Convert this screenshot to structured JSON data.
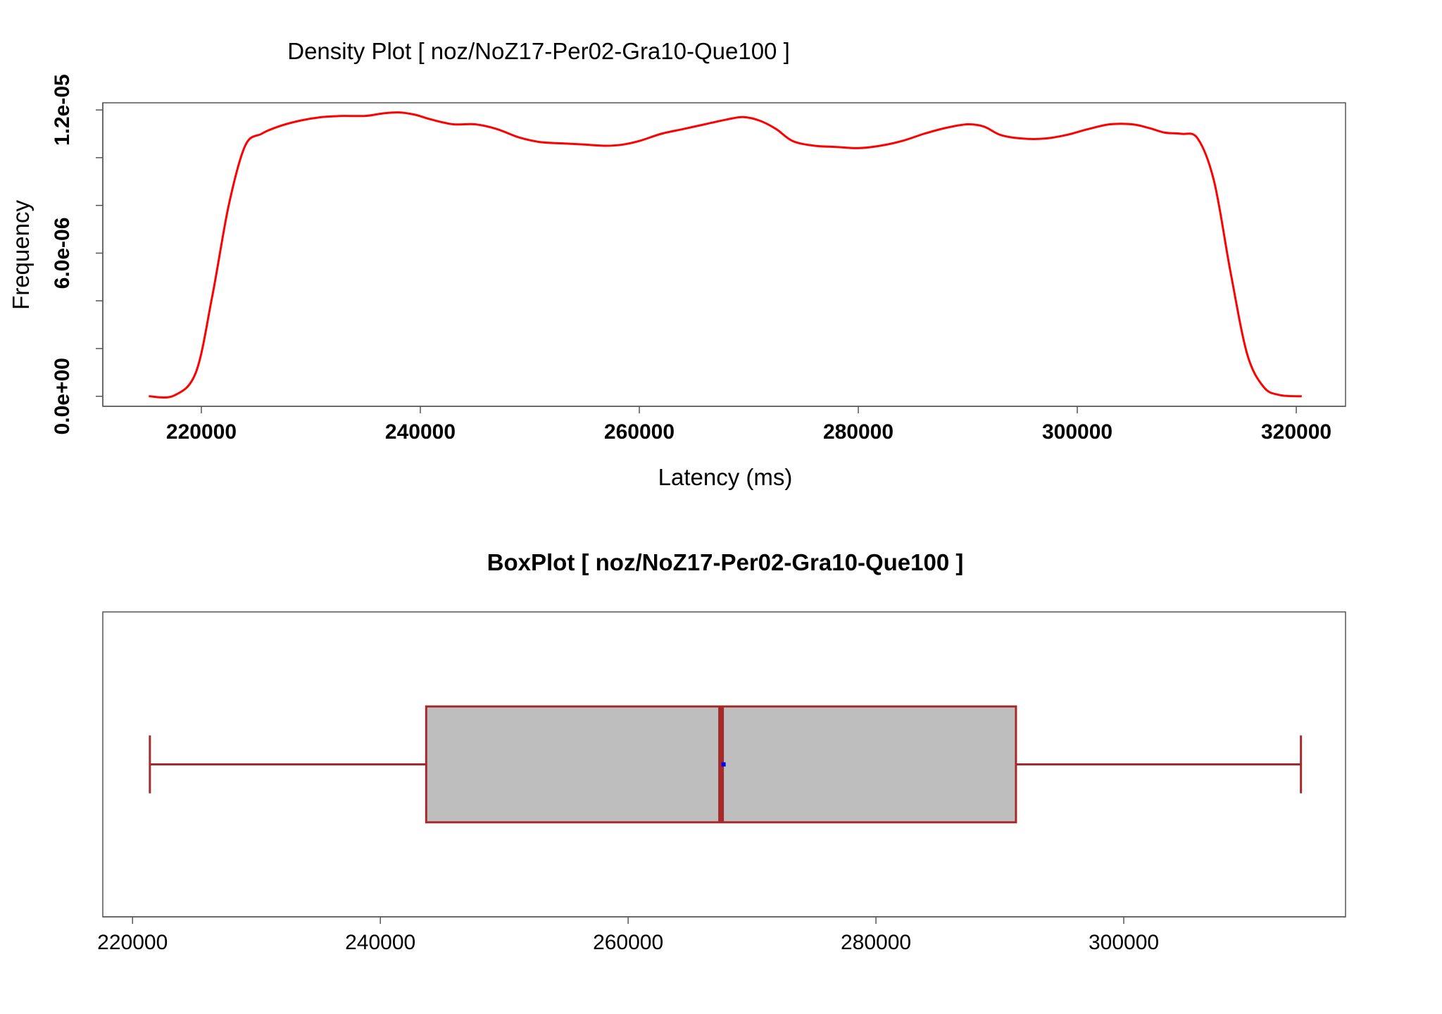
{
  "chart_data": [
    {
      "type": "line",
      "title": "Density Plot [ noz/NoZ17-Per02-Gra10-Que100 ]",
      "xlabel": "Latency (ms)",
      "ylabel": "Frequency",
      "xlim": [
        211000,
        324500
      ],
      "ylim": [
        -4.2e-07,
        1.23e-05
      ],
      "x_ticks": [
        "220000",
        "240000",
        "260000",
        "280000",
        "300000",
        "320000"
      ],
      "x_tick_values": [
        220000,
        240000,
        260000,
        280000,
        300000,
        320000
      ],
      "y_ticks": [
        "0.0e+00",
        "6.0e-06",
        "1.2e-05"
      ],
      "y_tick_values": [
        0,
        6e-06,
        1.2e-05
      ],
      "y_minor_tick_values": [
        0,
        2e-06,
        4e-06,
        6e-06,
        8e-06,
        1e-05,
        1.2e-05
      ],
      "grid": false,
      "series": [
        {
          "color": "#ff0000",
          "x": [
            215200,
            217500,
            219500,
            221000,
            222500,
            224000,
            225500,
            227000,
            229000,
            231000,
            233000,
            235000,
            236500,
            238000,
            239500,
            241000,
            243000,
            245000,
            247000,
            249000,
            251000,
            253000,
            255000,
            257000,
            258500,
            260000,
            262000,
            264000,
            266000,
            268000,
            269500,
            271000,
            272500,
            274000,
            276000,
            278000,
            280000,
            282000,
            284000,
            286000,
            288000,
            290000,
            291500,
            293000,
            295000,
            297000,
            299000,
            301000,
            303000,
            305000,
            306500,
            308000,
            309500,
            311000,
            312500,
            314000,
            315500,
            317000,
            318500,
            320500
          ],
          "y": [
            0.0,
            3e-08,
            1e-06,
            4.2e-06,
            8e-06,
            1.05e-05,
            1.1e-05,
            1.13e-05,
            1.155e-05,
            1.17e-05,
            1.175e-05,
            1.175e-05,
            1.185e-05,
            1.19e-05,
            1.18e-05,
            1.16e-05,
            1.14e-05,
            1.14e-05,
            1.12e-05,
            1.085e-05,
            1.065e-05,
            1.06e-05,
            1.055e-05,
            1.05e-05,
            1.055e-05,
            1.07e-05,
            1.1e-05,
            1.12e-05,
            1.14e-05,
            1.16e-05,
            1.17e-05,
            1.155e-05,
            1.12e-05,
            1.07e-05,
            1.05e-05,
            1.045e-05,
            1.04e-05,
            1.05e-05,
            1.07e-05,
            1.1e-05,
            1.125e-05,
            1.14e-05,
            1.13e-05,
            1.095e-05,
            1.08e-05,
            1.08e-05,
            1.095e-05,
            1.12e-05,
            1.14e-05,
            1.14e-05,
            1.125e-05,
            1.105e-05,
            1.1e-05,
            1.08e-05,
            9e-06,
            5.2e-06,
            1.8e-06,
            4e-07,
            5e-08,
            0.0
          ]
        }
      ]
    },
    {
      "type": "box",
      "title": "BoxPlot [ noz/NoZ17-Per02-Gra10-Que100 ]",
      "xlim": [
        217600,
        317900
      ],
      "x_ticks": [
        "220000",
        "240000",
        "260000",
        "280000",
        "300000"
      ],
      "x_tick_values": [
        220000,
        240000,
        260000,
        280000,
        300000
      ],
      "grid": false,
      "box": {
        "whisker_low": 221400,
        "q1": 243700,
        "median": 267500,
        "mean": 267700,
        "q3": 291300,
        "whisker_high": 314300,
        "fill_color": "#bebebe",
        "line_color": "#a52a2a",
        "mean_color": "#0000ff"
      }
    }
  ]
}
